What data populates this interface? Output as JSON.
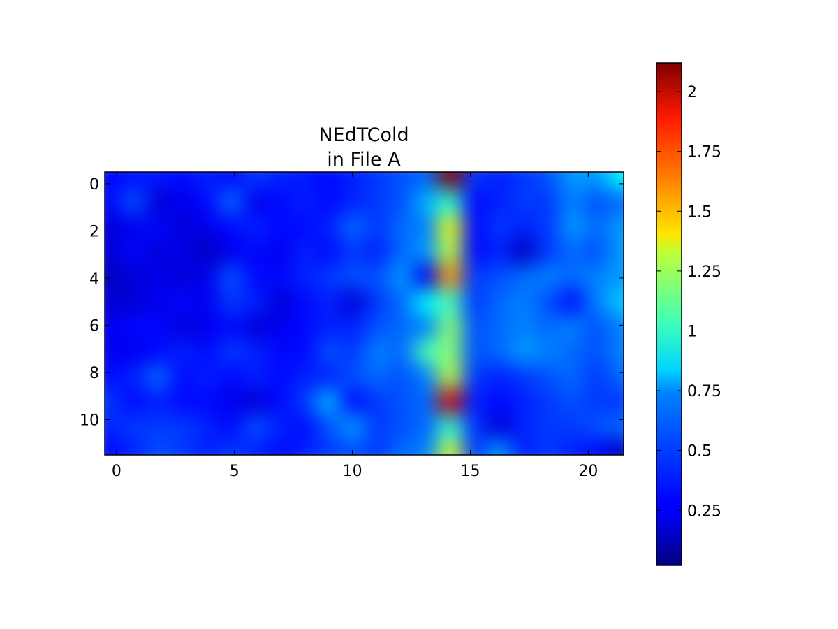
{
  "chart_data": {
    "type": "heatmap",
    "title_lines": [
      "NEdTCold",
      "in File A"
    ],
    "xlabel": "",
    "ylabel": "",
    "colormap": "jet",
    "interpolation": "bilinear",
    "x_range": [
      -0.5,
      21.5
    ],
    "y_range": [
      -0.5,
      11.5
    ],
    "y_inverted": true,
    "x_ticks": [
      0,
      5,
      10,
      15,
      20
    ],
    "x_tick_labels": [
      "0",
      "5",
      "10",
      "15",
      "20"
    ],
    "y_ticks": [
      0,
      2,
      4,
      6,
      8,
      10
    ],
    "y_tick_labels": [
      "0",
      "2",
      "4",
      "6",
      "8",
      "10"
    ],
    "colorbar": {
      "vmin": 0.02,
      "vmax": 2.12,
      "ticks": [
        0.25,
        0.5,
        0.75,
        1,
        1.25,
        1.5,
        1.75,
        2
      ],
      "tick_labels": [
        "0.25",
        "0.5",
        "0.75",
        "1",
        "1.25",
        "1.5",
        "1.75",
        "2"
      ]
    },
    "columns": 22,
    "rows": 12,
    "values": [
      [
        0.3,
        0.32,
        0.33,
        0.3,
        0.35,
        0.3,
        0.4,
        0.35,
        0.33,
        0.3,
        0.35,
        0.4,
        0.45,
        0.5,
        2.1,
        0.4,
        0.35,
        0.4,
        0.45,
        0.6,
        0.6,
        0.8
      ],
      [
        0.3,
        0.45,
        0.2,
        0.25,
        0.3,
        0.5,
        0.25,
        0.3,
        0.35,
        0.3,
        0.35,
        0.4,
        0.45,
        0.65,
        0.9,
        0.3,
        0.35,
        0.4,
        0.4,
        0.55,
        0.45,
        0.5
      ],
      [
        0.2,
        0.25,
        0.3,
        0.2,
        0.25,
        0.3,
        0.35,
        0.3,
        0.3,
        0.35,
        0.5,
        0.4,
        0.5,
        0.55,
        1.3,
        0.3,
        0.4,
        0.35,
        0.4,
        0.6,
        0.5,
        0.6
      ],
      [
        0.2,
        0.3,
        0.2,
        0.25,
        0.15,
        0.25,
        0.3,
        0.25,
        0.35,
        0.3,
        0.4,
        0.35,
        0.5,
        0.6,
        1.2,
        0.3,
        0.35,
        0.15,
        0.4,
        0.5,
        0.45,
        0.6
      ],
      [
        0.15,
        0.2,
        0.25,
        0.2,
        0.25,
        0.45,
        0.3,
        0.3,
        0.35,
        0.4,
        0.45,
        0.45,
        0.6,
        0.25,
        1.55,
        0.4,
        0.45,
        0.5,
        0.55,
        0.5,
        0.55,
        0.6
      ],
      [
        0.2,
        0.2,
        0.25,
        0.3,
        0.25,
        0.4,
        0.35,
        0.2,
        0.3,
        0.35,
        0.2,
        0.4,
        0.5,
        0.8,
        0.95,
        0.4,
        0.5,
        0.55,
        0.45,
        0.3,
        0.55,
        0.7
      ],
      [
        0.25,
        0.3,
        0.3,
        0.2,
        0.25,
        0.3,
        0.2,
        0.25,
        0.3,
        0.35,
        0.35,
        0.45,
        0.5,
        0.55,
        1.1,
        0.45,
        0.5,
        0.55,
        0.5,
        0.55,
        0.45,
        0.55
      ],
      [
        0.25,
        0.25,
        0.3,
        0.35,
        0.3,
        0.4,
        0.35,
        0.3,
        0.3,
        0.45,
        0.4,
        0.55,
        0.5,
        0.95,
        1.1,
        0.45,
        0.5,
        0.6,
        0.55,
        0.5,
        0.45,
        0.55
      ],
      [
        0.3,
        0.35,
        0.5,
        0.3,
        0.35,
        0.3,
        0.35,
        0.3,
        0.35,
        0.35,
        0.45,
        0.5,
        0.45,
        0.55,
        1.2,
        0.4,
        0.35,
        0.4,
        0.45,
        0.5,
        0.4,
        0.5
      ],
      [
        0.4,
        0.3,
        0.35,
        0.3,
        0.3,
        0.25,
        0.2,
        0.3,
        0.4,
        0.65,
        0.3,
        0.4,
        0.45,
        0.5,
        1.95,
        0.35,
        0.3,
        0.35,
        0.4,
        0.45,
        0.4,
        0.4
      ],
      [
        0.35,
        0.4,
        0.4,
        0.4,
        0.35,
        0.3,
        0.45,
        0.35,
        0.3,
        0.45,
        0.6,
        0.4,
        0.45,
        0.5,
        0.9,
        0.4,
        0.2,
        0.35,
        0.4,
        0.4,
        0.45,
        0.5
      ],
      [
        0.3,
        0.35,
        0.45,
        0.4,
        0.35,
        0.4,
        0.35,
        0.3,
        0.35,
        0.4,
        0.45,
        0.4,
        0.5,
        0.55,
        1.25,
        0.4,
        0.6,
        0.35,
        0.4,
        0.35,
        0.3,
        0.15
      ]
    ]
  }
}
